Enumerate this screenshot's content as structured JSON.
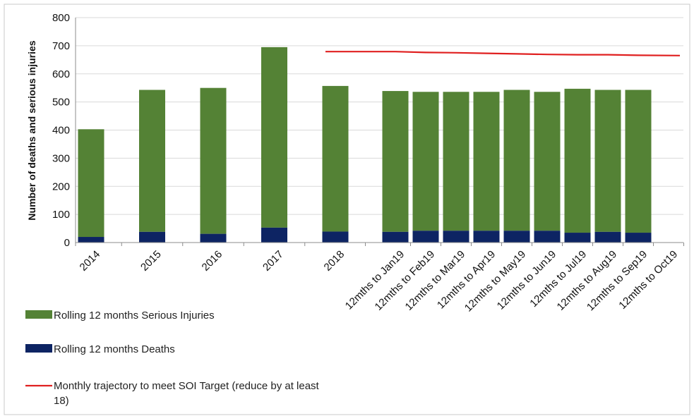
{
  "chart_data": {
    "type": "bar",
    "title": "",
    "xlabel": "",
    "ylabel": "Number of deaths and serious injuries",
    "ylim": [
      0,
      800
    ],
    "yticks": [
      0,
      100,
      200,
      300,
      400,
      500,
      600,
      700,
      800
    ],
    "grid": true,
    "stacked": true,
    "legend_position": "bottom-left",
    "categories": [
      "2014",
      "2015",
      "2016",
      "2017",
      "2018",
      "12mths to Jan19",
      "12mths to Feb19",
      "12mths to Mar19",
      "12mths to Apr19",
      "12mths to May19",
      "12mths to Jun19",
      "12mths to Jul19",
      "12mths to Aug19",
      "12mths to Sep19",
      "12mths to Oct19"
    ],
    "series": [
      {
        "name": "Rolling 12 months Deaths",
        "type": "bar",
        "color": "#0d2463",
        "values": [
          20,
          38,
          31,
          53,
          39,
          38,
          42,
          42,
          42,
          42,
          42,
          35,
          38,
          35,
          null
        ]
      },
      {
        "name": "Rolling 12 months Serious Injuries",
        "type": "bar",
        "color": "#548235",
        "values": [
          383,
          505,
          519,
          642,
          518,
          501,
          494,
          494,
          494,
          501,
          494,
          512,
          505,
          508,
          null
        ]
      },
      {
        "name": "Monthly trajectory to meet SOI Target (reduce by at least 18)",
        "type": "line",
        "color": "#e02020",
        "values": [
          null,
          null,
          null,
          null,
          679,
          679,
          676,
          675,
          673,
          671,
          669,
          668,
          668,
          666,
          665
        ]
      }
    ],
    "legend": [
      {
        "label": "Rolling 12 months Serious Injuries",
        "line1": "Rolling 12 months Serious Injuries",
        "line2": "",
        "color": "#548235",
        "kind": "bar"
      },
      {
        "label": "Rolling 12 months Deaths",
        "line1": "Rolling 12 months Deaths",
        "line2": "",
        "color": "#0d2463",
        "kind": "bar"
      },
      {
        "label": "Monthly trajectory to meet SOI Target (reduce by at least 18)",
        "line1": "Monthly trajectory to meet SOI Target (reduce by at least",
        "line2": "18)",
        "color": "#e02020",
        "kind": "line"
      }
    ]
  }
}
